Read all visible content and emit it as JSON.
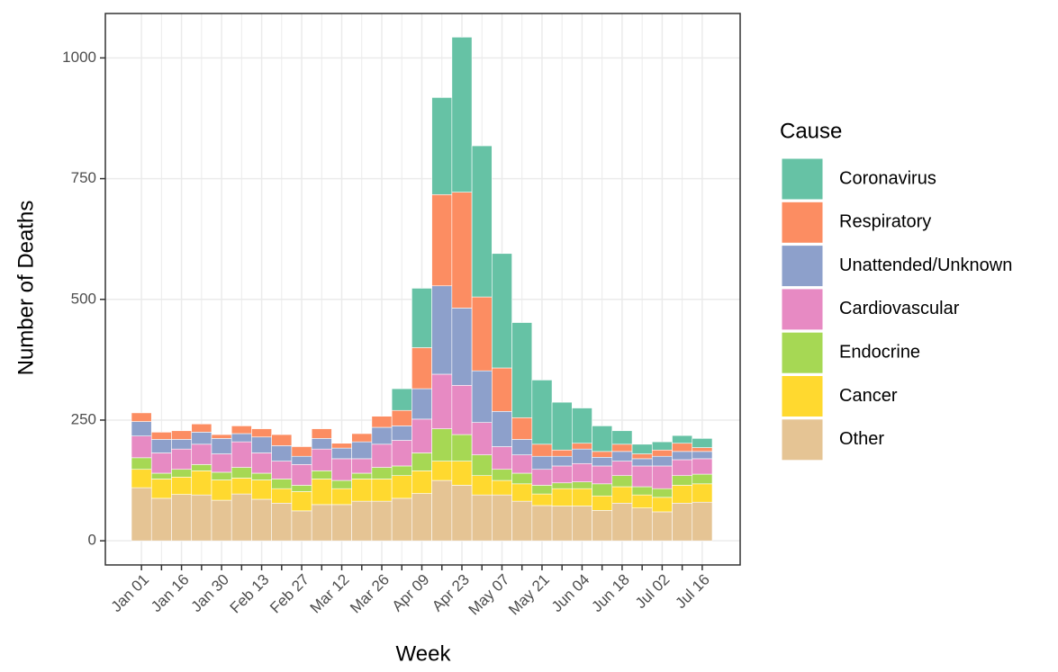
{
  "chart_data": {
    "type": "stacked_bar",
    "x_label": "Week",
    "y_label": "Number of Deaths",
    "legend_title": "Cause",
    "legend_position": "right",
    "categories": [
      "Jan 01",
      null,
      "Jan 16",
      null,
      "Jan 30",
      null,
      "Feb 13",
      null,
      "Feb 27",
      null,
      "Mar 12",
      null,
      "Mar 26",
      null,
      "Apr 09",
      null,
      "Apr 23",
      null,
      "May 07",
      null,
      "May 21",
      null,
      "Jun 04",
      null,
      "Jun 18",
      null,
      "Jul 02",
      null,
      "Jul 16"
    ],
    "series": [
      {
        "name": "Other",
        "color": "#e5c494",
        "values": [
          110,
          88,
          96,
          95,
          84,
          97,
          86,
          78,
          62,
          75,
          75,
          82,
          82,
          88,
          98,
          125,
          115,
          95,
          95,
          82,
          73,
          72,
          72,
          63,
          78,
          68,
          60,
          78,
          80
        ]
      },
      {
        "name": "Cancer",
        "color": "#ffd92f",
        "values": [
          38,
          40,
          36,
          50,
          42,
          33,
          40,
          30,
          40,
          53,
          33,
          46,
          46,
          47,
          47,
          40,
          50,
          40,
          30,
          36,
          24,
          36,
          36,
          30,
          34,
          27,
          30,
          37,
          38
        ]
      },
      {
        "name": "Endocrine",
        "color": "#a6d854",
        "values": [
          24,
          12,
          16,
          13,
          16,
          22,
          14,
          20,
          13,
          17,
          17,
          12,
          24,
          20,
          37,
          67,
          55,
          43,
          23,
          22,
          18,
          12,
          14,
          25,
          23,
          17,
          18,
          20,
          20
        ]
      },
      {
        "name": "Cardiovascular",
        "color": "#e78ac3",
        "values": [
          45,
          42,
          42,
          42,
          38,
          53,
          42,
          37,
          43,
          45,
          45,
          30,
          48,
          53,
          70,
          113,
          102,
          67,
          47,
          38,
          33,
          35,
          38,
          37,
          30,
          43,
          47,
          33,
          32
        ]
      },
      {
        "name": "Unattended/Unknown",
        "color": "#8da0cb",
        "values": [
          30,
          28,
          20,
          25,
          32,
          17,
          33,
          32,
          17,
          22,
          22,
          35,
          35,
          30,
          63,
          183,
          160,
          107,
          73,
          32,
          27,
          20,
          30,
          18,
          20,
          15,
          20,
          17,
          15
        ]
      },
      {
        "name": "Respiratory",
        "color": "#fc8d62",
        "values": [
          18,
          15,
          18,
          17,
          8,
          16,
          17,
          23,
          20,
          20,
          10,
          17,
          23,
          32,
          85,
          189,
          240,
          153,
          90,
          45,
          25,
          13,
          12,
          12,
          15,
          10,
          13,
          17,
          8
        ]
      },
      {
        "name": "Coronavirus",
        "color": "#66c2a5",
        "values": [
          0,
          0,
          0,
          0,
          0,
          0,
          0,
          0,
          0,
          0,
          0,
          0,
          0,
          45,
          123,
          201,
          321,
          313,
          237,
          197,
          133,
          99,
          73,
          53,
          28,
          20,
          17,
          16,
          19
        ]
      }
    ],
    "ylim": [
      -50,
      1092
    ],
    "yticks": [
      0,
      250,
      500,
      750,
      1000
    ],
    "grid": true
  }
}
